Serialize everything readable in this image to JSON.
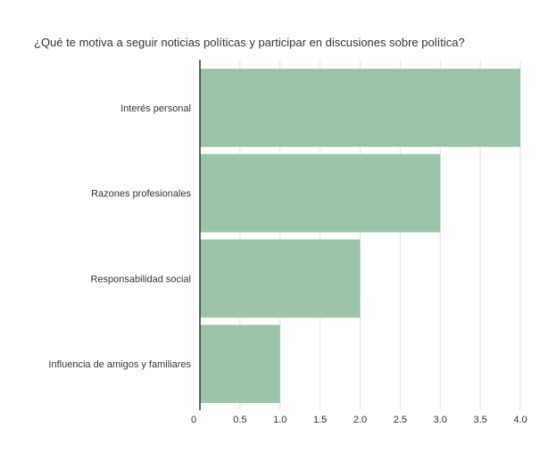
{
  "chart_data": {
    "type": "bar",
    "orientation": "horizontal",
    "title": "¿Qué te motiva a seguir noticias políticas y participar en discusiones sobre política?",
    "categories": [
      "Interés personal",
      "Razones profesionales",
      "Responsabilidad social",
      "Influencia de amigos y familiares"
    ],
    "values": [
      4,
      3,
      2,
      1
    ],
    "xlim": [
      0,
      4
    ],
    "xticks": [
      "0",
      "0.5",
      "1.0",
      "1.5",
      "2.0",
      "2.5",
      "3.0",
      "3.5",
      "4.0"
    ],
    "grid": true,
    "legend": "none",
    "colors": {
      "bar": "#9bc4a8",
      "grid": "#e3e3e3",
      "axis": "#333333",
      "text": "#333333"
    }
  }
}
